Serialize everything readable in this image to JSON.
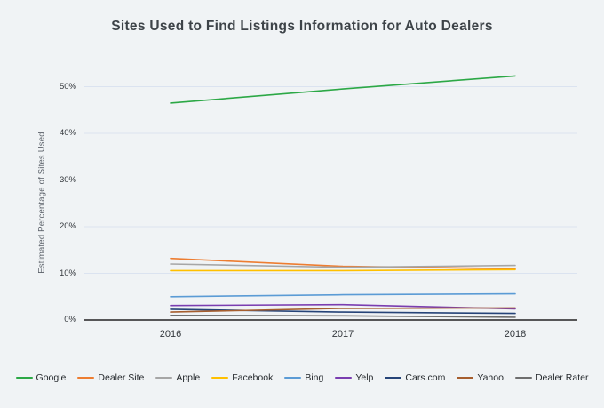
{
  "page": {
    "background": "#f0f3f5",
    "gridline_color": "#dbe3f0",
    "axis_color": "#404040"
  },
  "title": "Sites Used to Find Listings Information for Auto Dealers",
  "chart_data": {
    "type": "line",
    "title": "Sites Used to Find Listings Information for Auto Dealers",
    "xlabel": "",
    "ylabel": "Estimated Percentage of Sites Used",
    "x": [
      2016,
      2017,
      2018
    ],
    "xtick_labels": [
      "2016",
      "2017",
      "2018"
    ],
    "yticks": [
      0,
      10,
      20,
      30,
      40,
      50
    ],
    "ytick_labels": [
      "0%",
      "10%",
      "20%",
      "30%",
      "40%",
      "50%"
    ],
    "ylim": [
      0,
      55
    ],
    "grid": true,
    "legend_position": "bottom",
    "series": [
      {
        "name": "Google",
        "color": "#2ca846",
        "values": [
          46.5,
          49.5,
          52.3
        ]
      },
      {
        "name": "Dealer Site",
        "color": "#ed7d31",
        "values": [
          13.2,
          11.5,
          11.0
        ]
      },
      {
        "name": "Apple",
        "color": "#a6a6a6",
        "values": [
          12.0,
          11.3,
          11.7
        ]
      },
      {
        "name": "Facebook",
        "color": "#ffc000",
        "values": [
          10.6,
          10.6,
          10.8
        ]
      },
      {
        "name": "Bing",
        "color": "#5b9bd5",
        "values": [
          5.0,
          5.4,
          5.6
        ]
      },
      {
        "name": "Yelp",
        "color": "#7a3db0",
        "values": [
          3.1,
          3.3,
          2.4
        ]
      },
      {
        "name": "Cars.com",
        "color": "#264478",
        "values": [
          2.3,
          1.7,
          1.4
        ]
      },
      {
        "name": "Yahoo",
        "color": "#a65e2e",
        "values": [
          1.7,
          2.5,
          2.6
        ]
      },
      {
        "name": "Dealer Rater",
        "color": "#6e6e6e",
        "values": [
          1.0,
          0.9,
          0.6
        ]
      }
    ]
  }
}
